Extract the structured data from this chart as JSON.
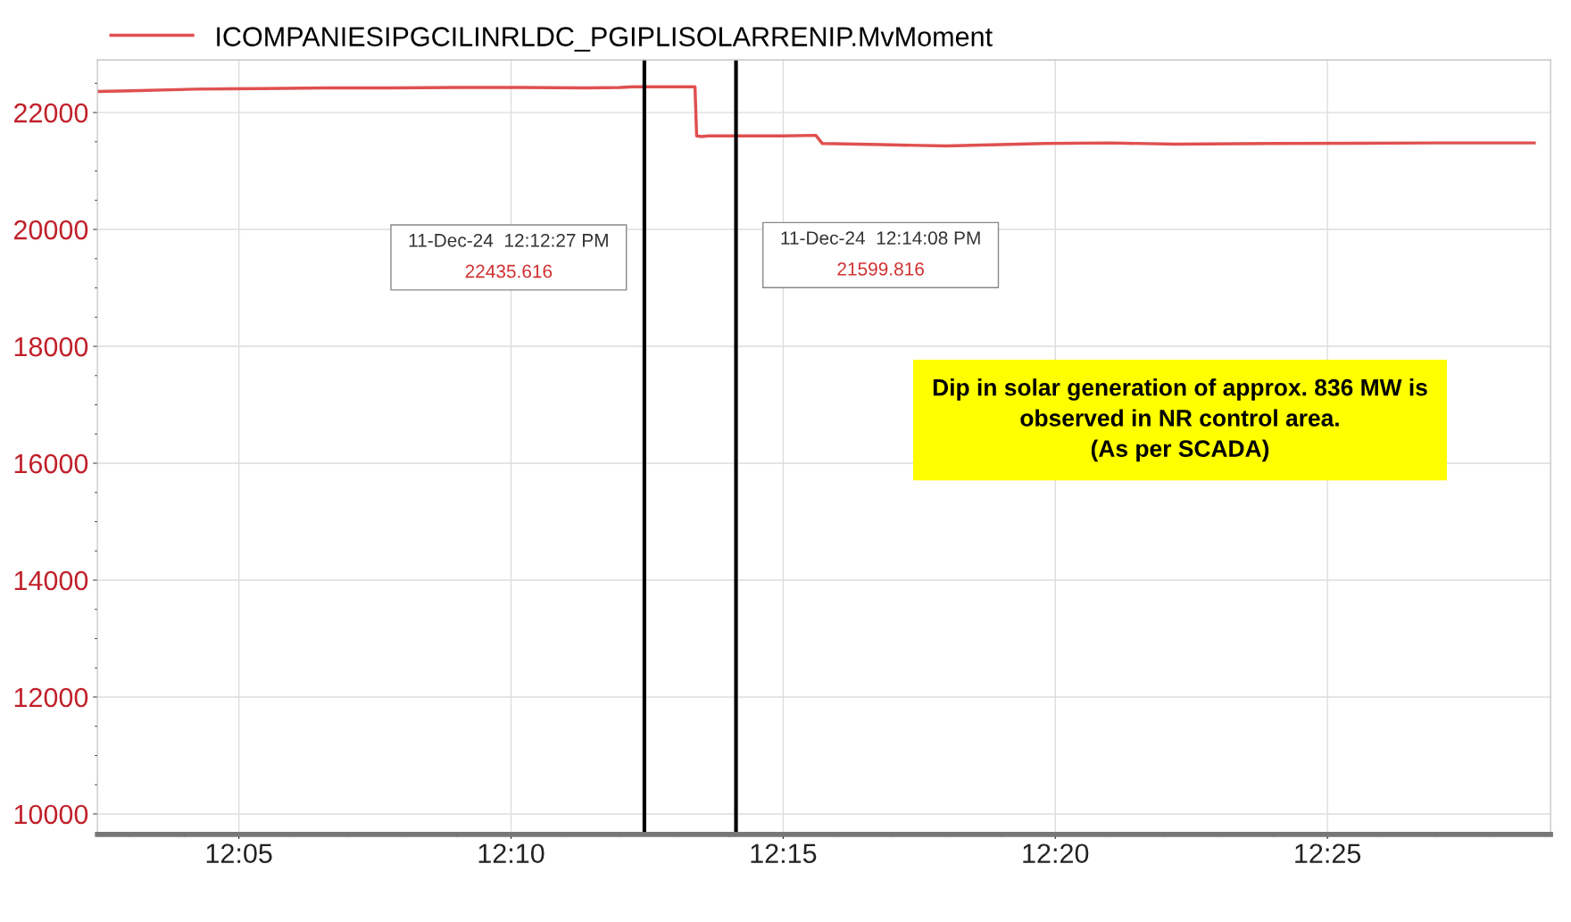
{
  "chart_data": {
    "type": "line",
    "series": [
      {
        "name": "ICOMPANIESIPGCILINRLDC_PGIPLISOLARRENIP.MvMoment",
        "color": "#e05050",
        "x": [
          12.04,
          12.05,
          12.07,
          12.09,
          12.11,
          12.13,
          12.15,
          12.17,
          12.19,
          12.2,
          12.204,
          12.208,
          12.215,
          12.223,
          12.2235,
          12.225,
          12.227,
          12.235,
          12.25,
          12.26,
          12.262,
          12.28,
          12.3,
          12.33,
          12.35,
          12.37,
          12.4,
          12.45,
          12.48
        ],
        "values": [
          22360,
          22370,
          22400,
          22410,
          22420,
          22420,
          22430,
          22430,
          22420,
          22430,
          22440,
          22440,
          22440,
          22440,
          21600,
          21590,
          21600,
          21600,
          21600,
          21610,
          21470,
          21450,
          21430,
          21470,
          21480,
          21460,
          21470,
          21480,
          21480
        ]
      }
    ],
    "xlim": [
      12.04,
      12.485
    ],
    "xticks": [
      {
        "value": 12.083333,
        "label": "12:05"
      },
      {
        "value": 12.166667,
        "label": "12:10"
      },
      {
        "value": 12.25,
        "label": "12:15"
      },
      {
        "value": 12.333333,
        "label": "12:20"
      },
      {
        "value": 12.416667,
        "label": "12:25"
      }
    ],
    "ylim": [
      9650,
      22900
    ],
    "yticks": [
      10000,
      12000,
      14000,
      16000,
      18000,
      20000,
      22000
    ],
    "grid": true,
    "legend": "top left",
    "marker": "none",
    "line_style": "solid",
    "ref_lines": [
      {
        "axis": "x",
        "value": 12.2075,
        "color": "#000000"
      },
      {
        "axis": "x",
        "value": 12.235556,
        "color": "#000000"
      }
    ],
    "annotations": [
      "11-Dec-24  12:12:27 PM\n22435.616",
      "11-Dec-24  12:14:08 PM\n21599.816",
      "Dip in solar generation of approx. 836 MW is\nobserved in NR control area.\n(As per SCADA)"
    ]
  }
}
